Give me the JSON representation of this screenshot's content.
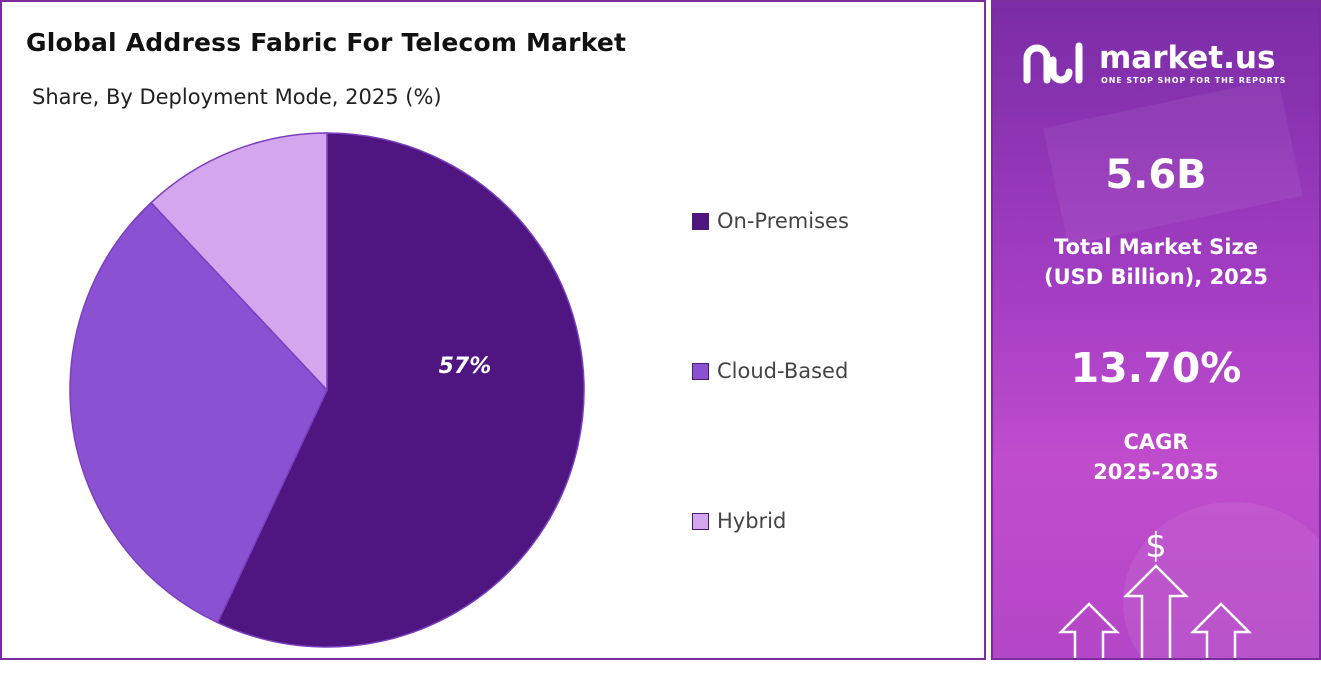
{
  "chart_data": {
    "type": "pie",
    "title": "Global Address Fabric For Telecom Market",
    "subtitle": "Share, By Deployment Mode, 2025 (%)",
    "slices": [
      {
        "label": "On-Premises",
        "value": 57,
        "data_label": "57%",
        "color": "#4f1580"
      },
      {
        "label": "Cloud-Based",
        "value": 31,
        "data_label": "",
        "color": "#8a52d3"
      },
      {
        "label": "Hybrid",
        "value": 12,
        "data_label": "",
        "color": "#d3a6ee"
      }
    ],
    "legend_position": "right"
  },
  "sidebar": {
    "logo_text": "market.us",
    "logo_tagline": "ONE STOP SHOP FOR THE REPORTS",
    "market_size_value": "5.6B",
    "market_size_label_line1": "Total Market Size",
    "market_size_label_line2": "(USD Billion), 2025",
    "cagr_value": "13.70%",
    "cagr_label_line1": "CAGR",
    "cagr_label_line2": "2025-2035",
    "dollar_symbol": "$",
    "icons": [
      "market-us-logo-icon",
      "dollar-arrows-icon"
    ]
  },
  "colors": {
    "border": "#7b2d9e",
    "on_premises": "#4f1580",
    "cloud_based": "#8a52d3",
    "hybrid": "#d3a6ee"
  }
}
